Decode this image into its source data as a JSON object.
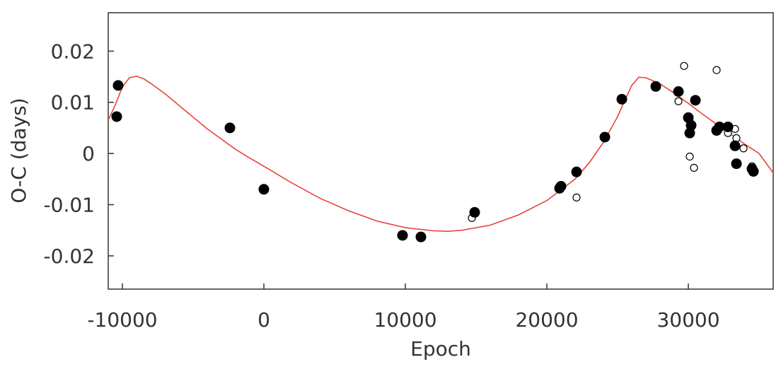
{
  "chart_data": {
    "type": "scatter",
    "xlabel": "Epoch",
    "ylabel": "O-C (days)",
    "xlim": [
      -11000,
      36000
    ],
    "ylim": [
      -0.0265,
      0.0275
    ],
    "xticks": [
      -10000,
      0,
      10000,
      20000,
      30000
    ],
    "yticks": [
      -0.02,
      -0.01,
      0,
      0.01,
      0.02
    ],
    "xtick_labels": [
      "-10000",
      "0",
      "10000",
      "20000",
      "30000"
    ],
    "ytick_labels": [
      "-0.02",
      "-0.01",
      "0",
      "0.01",
      "0.02"
    ],
    "grid": false,
    "legend": "none",
    "colors": {
      "fit": "#e8443a",
      "points": "#000000",
      "frame": "#333333"
    },
    "series": [
      {
        "kind": "filled-points",
        "x": [
          -10300,
          -10400,
          -2400,
          0,
          9800,
          11100,
          14900,
          20900,
          21000,
          22100,
          24100,
          25300,
          27700,
          29300,
          30000,
          30100,
          30200,
          30500,
          32000,
          32200,
          32800,
          33300,
          33400,
          34500,
          34600
        ],
        "y": [
          0.0133,
          0.0072,
          0.005,
          -0.007,
          -0.016,
          -0.0163,
          -0.0115,
          -0.0068,
          -0.0064,
          -0.0036,
          0.0032,
          0.0106,
          0.0131,
          0.0121,
          0.007,
          0.004,
          0.0055,
          0.0104,
          0.0045,
          0.0052,
          0.0052,
          0.0015,
          -0.002,
          -0.003,
          -0.0035
        ]
      },
      {
        "kind": "open-points",
        "x": [
          14700,
          22100,
          29300,
          29700,
          30100,
          30400,
          32000,
          32800,
          33300,
          33400,
          33900,
          34500
        ],
        "y": [
          -0.0126,
          -0.0086,
          0.0102,
          0.0171,
          -0.0006,
          -0.0028,
          0.0163,
          0.004,
          0.0048,
          0.003,
          0.001,
          -0.0025
        ]
      },
      {
        "kind": "fit-line",
        "x": [
          -11000,
          -10500,
          -10000,
          -9500,
          -9000,
          -8500,
          -8000,
          -7000,
          -6000,
          -5000,
          -4000,
          -3000,
          -2000,
          -1000,
          0,
          2000,
          4000,
          6000,
          8000,
          10000,
          12000,
          13000,
          14000,
          16000,
          18000,
          20000,
          22000,
          23000,
          24000,
          25000,
          25500,
          26000,
          26500,
          27000,
          28000,
          29000,
          30000,
          31000,
          32000,
          33000,
          34000,
          35000,
          36000
        ],
        "y": [
          0.0065,
          0.0095,
          0.013,
          0.0148,
          0.0151,
          0.0146,
          0.0137,
          0.0117,
          0.0094,
          0.0071,
          0.0048,
          0.0028,
          0.0008,
          -0.0009,
          -0.0025,
          -0.0058,
          -0.0088,
          -0.0112,
          -0.0132,
          -0.0145,
          -0.0151,
          -0.0152,
          -0.015,
          -0.014,
          -0.012,
          -0.0092,
          -0.005,
          -0.0018,
          0.0022,
          0.0072,
          0.0103,
          0.0133,
          0.0149,
          0.0148,
          0.0136,
          0.0118,
          0.0098,
          0.0077,
          0.0057,
          0.0038,
          0.0018,
          0.0,
          -0.0038
        ]
      }
    ]
  }
}
